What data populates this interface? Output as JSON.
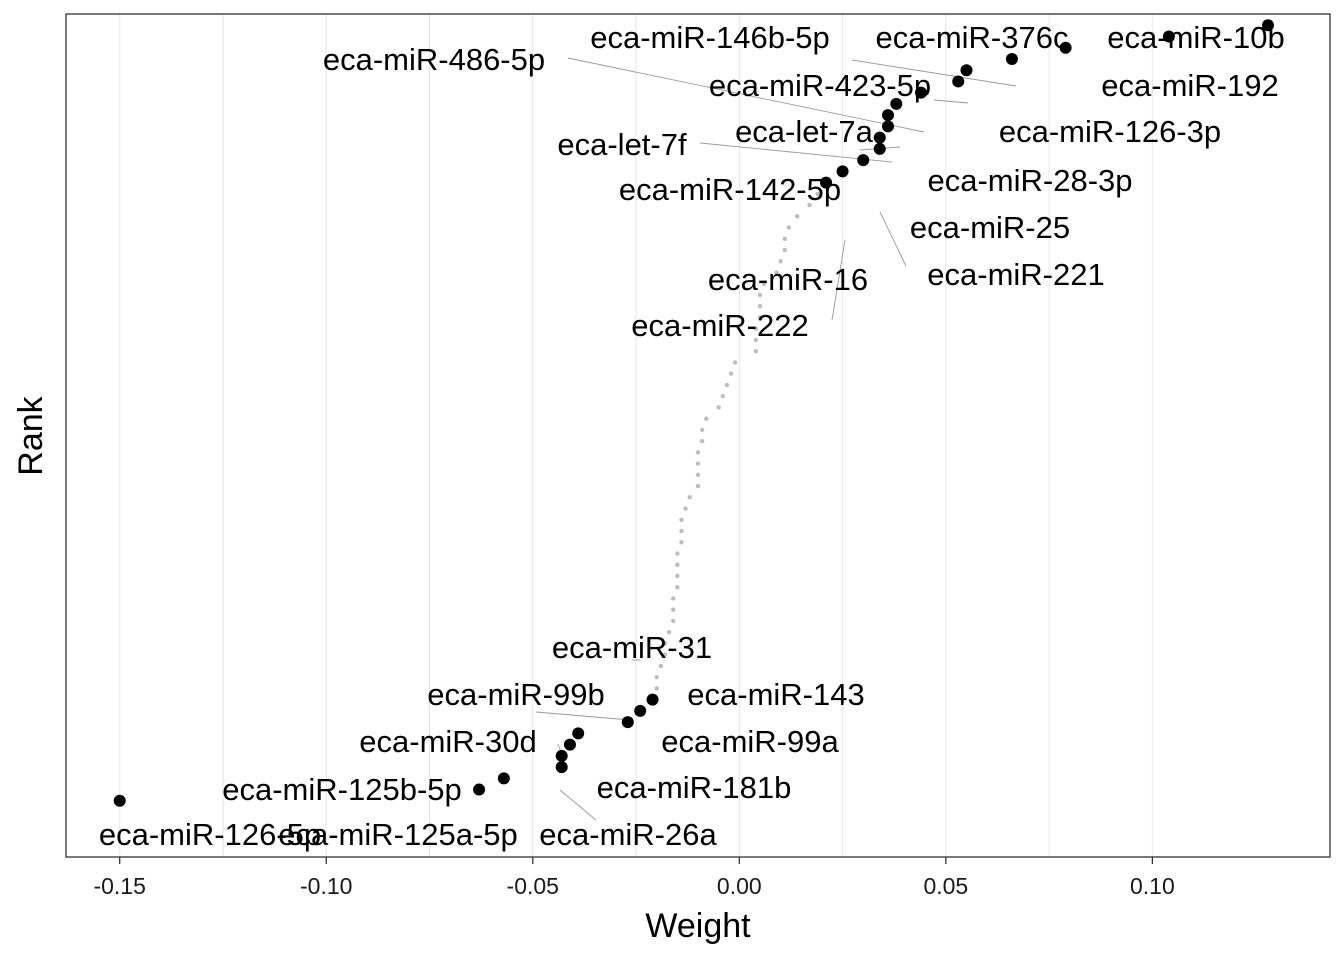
{
  "chart_data": {
    "type": "scatter",
    "title": "",
    "xlabel": "Weight",
    "ylabel": "Rank",
    "xlim": [
      -0.163,
      0.143
    ],
    "x_ticks": [
      -0.15,
      -0.1,
      -0.05,
      0.0,
      0.05,
      0.1
    ],
    "x_tick_labels": [
      "-0.15",
      "-0.10",
      "-0.05",
      "0.00",
      "0.05",
      "0.10"
    ],
    "ylim": [
      0,
      75
    ],
    "grid": true,
    "legend": "none",
    "series": [
      {
        "label_style": "highlighted",
        "color": "#000000",
        "points": [
          {
            "x": 0.128,
            "y": 74,
            "label": "eca-miR-10b"
          },
          {
            "x": 0.104,
            "y": 73,
            "label": "eca-miR-376c"
          },
          {
            "x": 0.079,
            "y": 72,
            "label": "eca-miR-192"
          },
          {
            "x": 0.066,
            "y": 71,
            "label": "eca-miR-146b-5p"
          },
          {
            "x": 0.055,
            "y": 70,
            "label": "eca-miR-423-5p"
          },
          {
            "x": 0.053,
            "y": 69,
            "label": "eca-miR-126-3p"
          },
          {
            "x": 0.044,
            "y": 68,
            "label": "eca-miR-486-5p"
          },
          {
            "x": 0.038,
            "y": 67,
            "label": "eca-let-7a"
          },
          {
            "x": 0.036,
            "y": 66,
            "label": "eca-let-7f"
          },
          {
            "x": 0.036,
            "y": 65,
            "label": "eca-miR-28-3p"
          },
          {
            "x": 0.034,
            "y": 64,
            "label": "eca-miR-142-5p"
          },
          {
            "x": 0.034,
            "y": 63,
            "label": "eca-miR-25"
          },
          {
            "x": 0.03,
            "y": 62,
            "label": "eca-miR-221"
          },
          {
            "x": 0.025,
            "y": 61,
            "label": "eca-miR-222"
          },
          {
            "x": 0.021,
            "y": 60,
            "label": "eca-miR-16"
          },
          {
            "x": -0.021,
            "y": 14,
            "label": "eca-miR-31"
          },
          {
            "x": -0.024,
            "y": 13,
            "label": "eca-miR-143"
          },
          {
            "x": -0.027,
            "y": 12,
            "label": "eca-miR-99b"
          },
          {
            "x": -0.039,
            "y": 11,
            "label": "eca-miR-99a"
          },
          {
            "x": -0.041,
            "y": 10,
            "label": "eca-miR-30d"
          },
          {
            "x": -0.043,
            "y": 9,
            "label": "eca-miR-181b"
          },
          {
            "x": -0.043,
            "y": 8,
            "label": "eca-miR-26a"
          },
          {
            "x": -0.057,
            "y": 7,
            "label": "eca-miR-125b-5p"
          },
          {
            "x": -0.063,
            "y": 6,
            "label": "eca-miR-125a-5p"
          },
          {
            "x": -0.15,
            "y": 5,
            "label": "eca-miR-126-5p"
          }
        ]
      },
      {
        "label_style": "background",
        "color": "#bdbdbd",
        "points": [
          {
            "x": 0.019,
            "y": 59
          },
          {
            "x": 0.017,
            "y": 58
          },
          {
            "x": 0.014,
            "y": 57
          },
          {
            "x": 0.012,
            "y": 56
          },
          {
            "x": 0.011,
            "y": 55
          },
          {
            "x": 0.011,
            "y": 54
          },
          {
            "x": 0.01,
            "y": 53
          },
          {
            "x": 0.009,
            "y": 52
          },
          {
            "x": 0.006,
            "y": 51
          },
          {
            "x": 0.005,
            "y": 50
          },
          {
            "x": 0.005,
            "y": 49
          },
          {
            "x": 0.005,
            "y": 48
          },
          {
            "x": 0.004,
            "y": 47
          },
          {
            "x": 0.004,
            "y": 46
          },
          {
            "x": 0.004,
            "y": 45
          },
          {
            "x": -0.001,
            "y": 44
          },
          {
            "x": -0.002,
            "y": 43
          },
          {
            "x": -0.003,
            "y": 42
          },
          {
            "x": -0.004,
            "y": 41
          },
          {
            "x": -0.005,
            "y": 40
          },
          {
            "x": -0.008,
            "y": 39
          },
          {
            "x": -0.009,
            "y": 38
          },
          {
            "x": -0.009,
            "y": 37
          },
          {
            "x": -0.01,
            "y": 36
          },
          {
            "x": -0.01,
            "y": 35
          },
          {
            "x": -0.01,
            "y": 34
          },
          {
            "x": -0.01,
            "y": 33
          },
          {
            "x": -0.012,
            "y": 32
          },
          {
            "x": -0.013,
            "y": 31
          },
          {
            "x": -0.014,
            "y": 30
          },
          {
            "x": -0.014,
            "y": 29
          },
          {
            "x": -0.014,
            "y": 28
          },
          {
            "x": -0.015,
            "y": 27
          },
          {
            "x": -0.015,
            "y": 26
          },
          {
            "x": -0.015,
            "y": 25
          },
          {
            "x": -0.015,
            "y": 24
          },
          {
            "x": -0.016,
            "y": 23
          },
          {
            "x": -0.016,
            "y": 22
          },
          {
            "x": -0.016,
            "y": 21
          },
          {
            "x": -0.017,
            "y": 20
          },
          {
            "x": -0.018,
            "y": 19
          },
          {
            "x": -0.018,
            "y": 18
          },
          {
            "x": -0.019,
            "y": 17
          },
          {
            "x": -0.02,
            "y": 16
          },
          {
            "x": -0.02,
            "y": 15
          }
        ]
      }
    ]
  }
}
